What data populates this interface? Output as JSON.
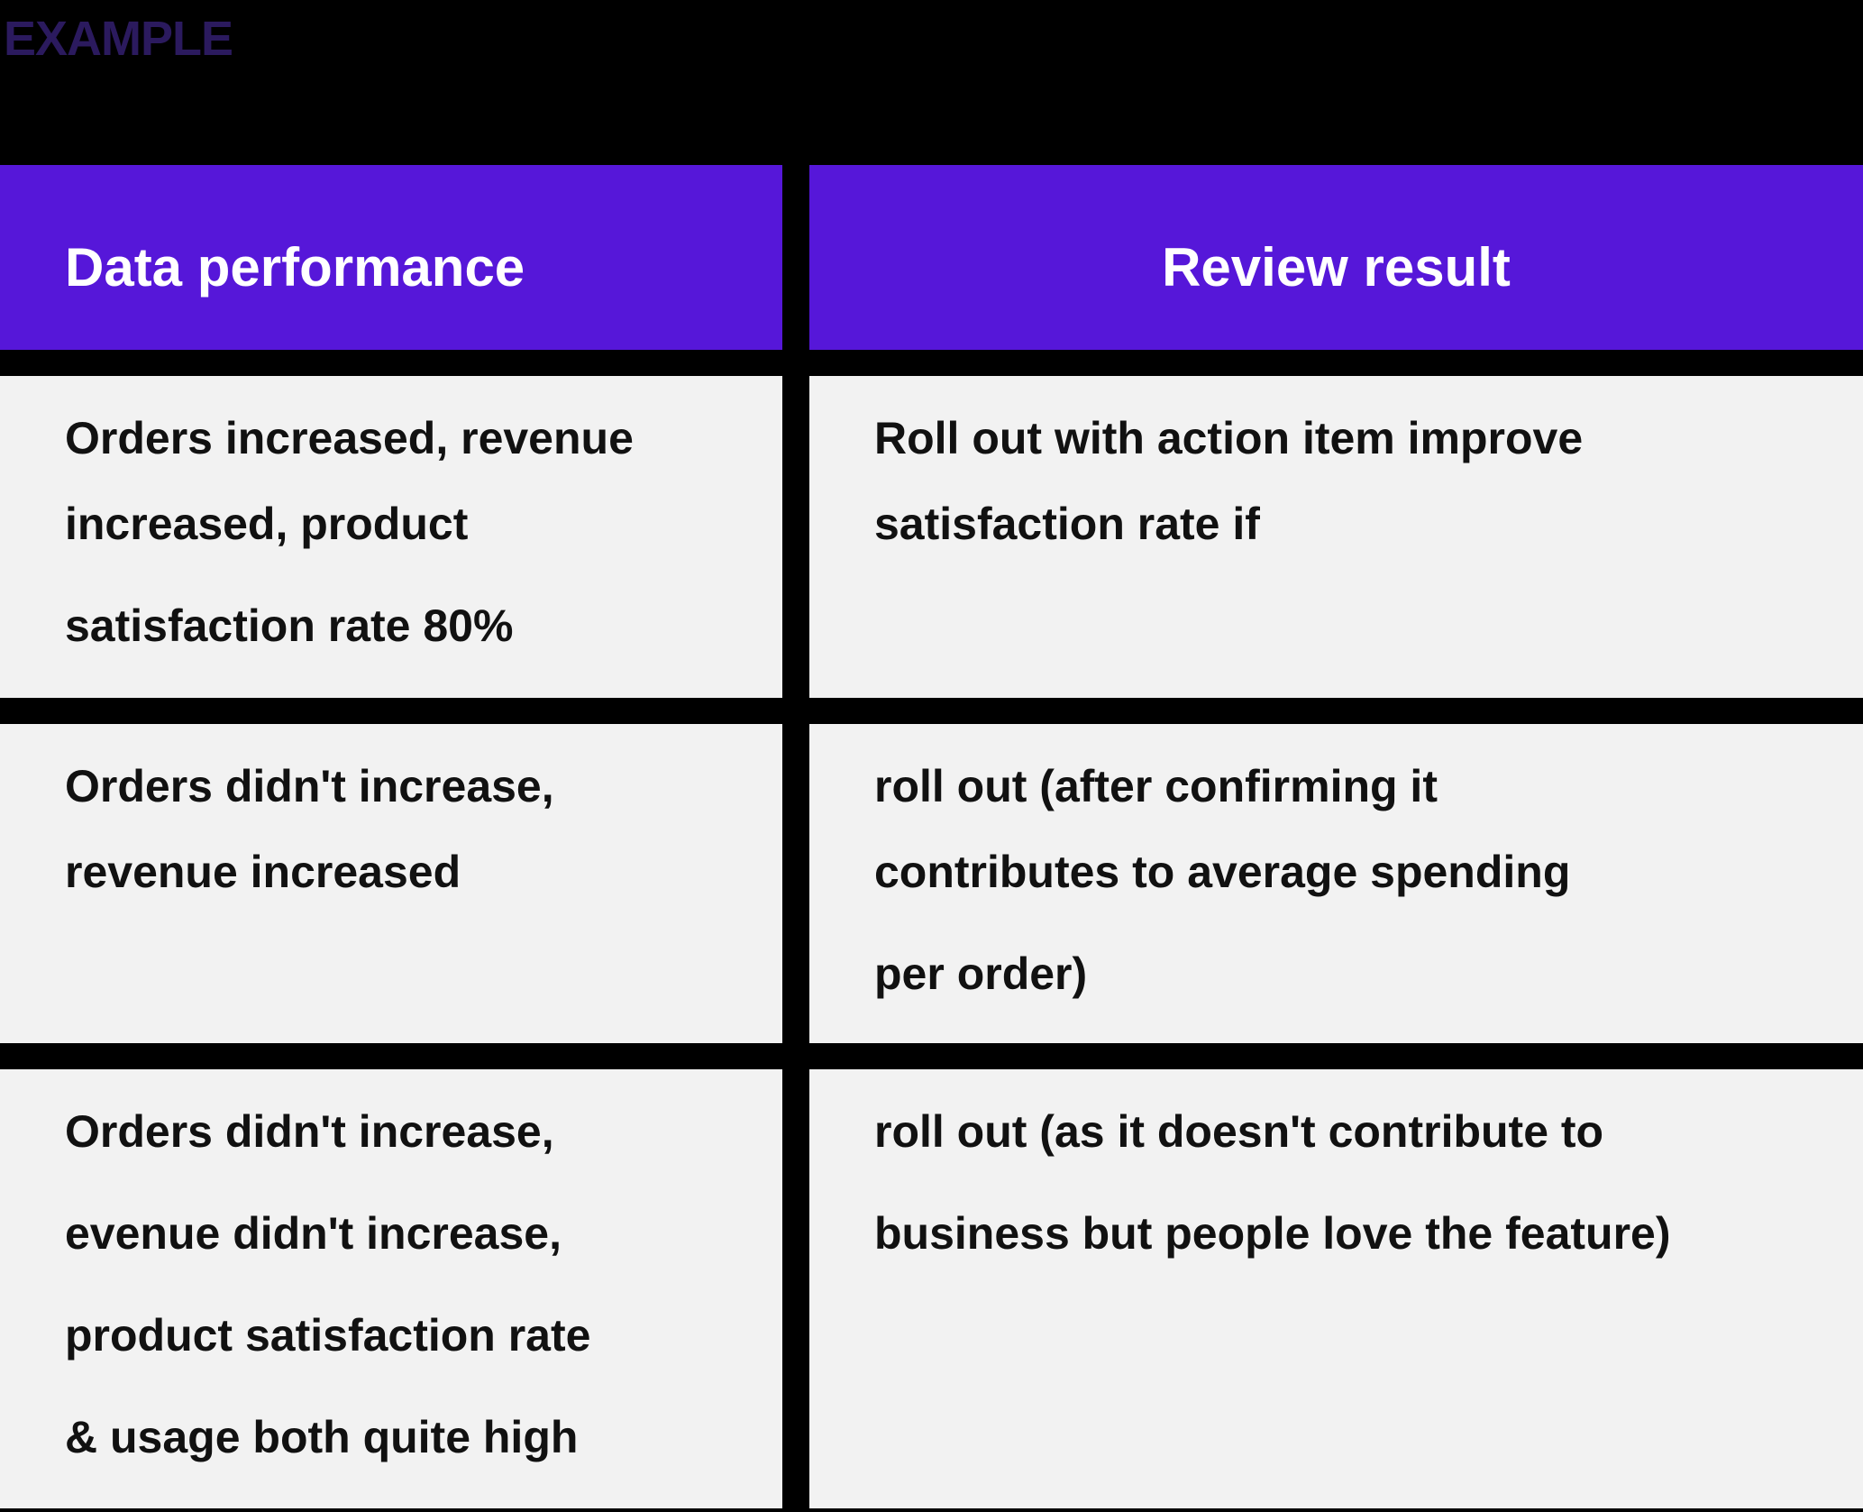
{
  "page": {
    "label": "EXAMPLE"
  },
  "colors": {
    "page_bg": "#000000",
    "header_bg": "#5617d9",
    "header_text": "#ffffff",
    "cell_bg": "#f2f2f2",
    "cell_text": "#111111",
    "label_color": "#2b1a5e"
  },
  "table": {
    "columns": [
      {
        "label": "Data performance"
      },
      {
        "label": "Review result"
      }
    ],
    "rows": [
      {
        "cells": [
          [
            [
              "Orders increased, revenue",
              "increased, product"
            ],
            [
              "satisfaction rate 80%"
            ]
          ],
          [
            [
              "Roll out with action item improve",
              "satisfaction rate if"
            ]
          ]
        ]
      },
      {
        "cells": [
          [
            [
              "Orders didn't increase,",
              "revenue increased"
            ]
          ],
          [
            [
              "roll out (after confirming it",
              "contributes to average spending"
            ],
            [
              "per order)"
            ]
          ]
        ]
      },
      {
        "cells": [
          [
            [
              "Orders didn't increase,"
            ],
            [
              "evenue didn't increase,"
            ],
            [
              "product satisfaction rate"
            ],
            [
              "& usage both quite high"
            ]
          ],
          [
            [
              "roll out (as it doesn't contribute to"
            ],
            [
              "business but people love the feature)"
            ]
          ]
        ]
      }
    ]
  }
}
